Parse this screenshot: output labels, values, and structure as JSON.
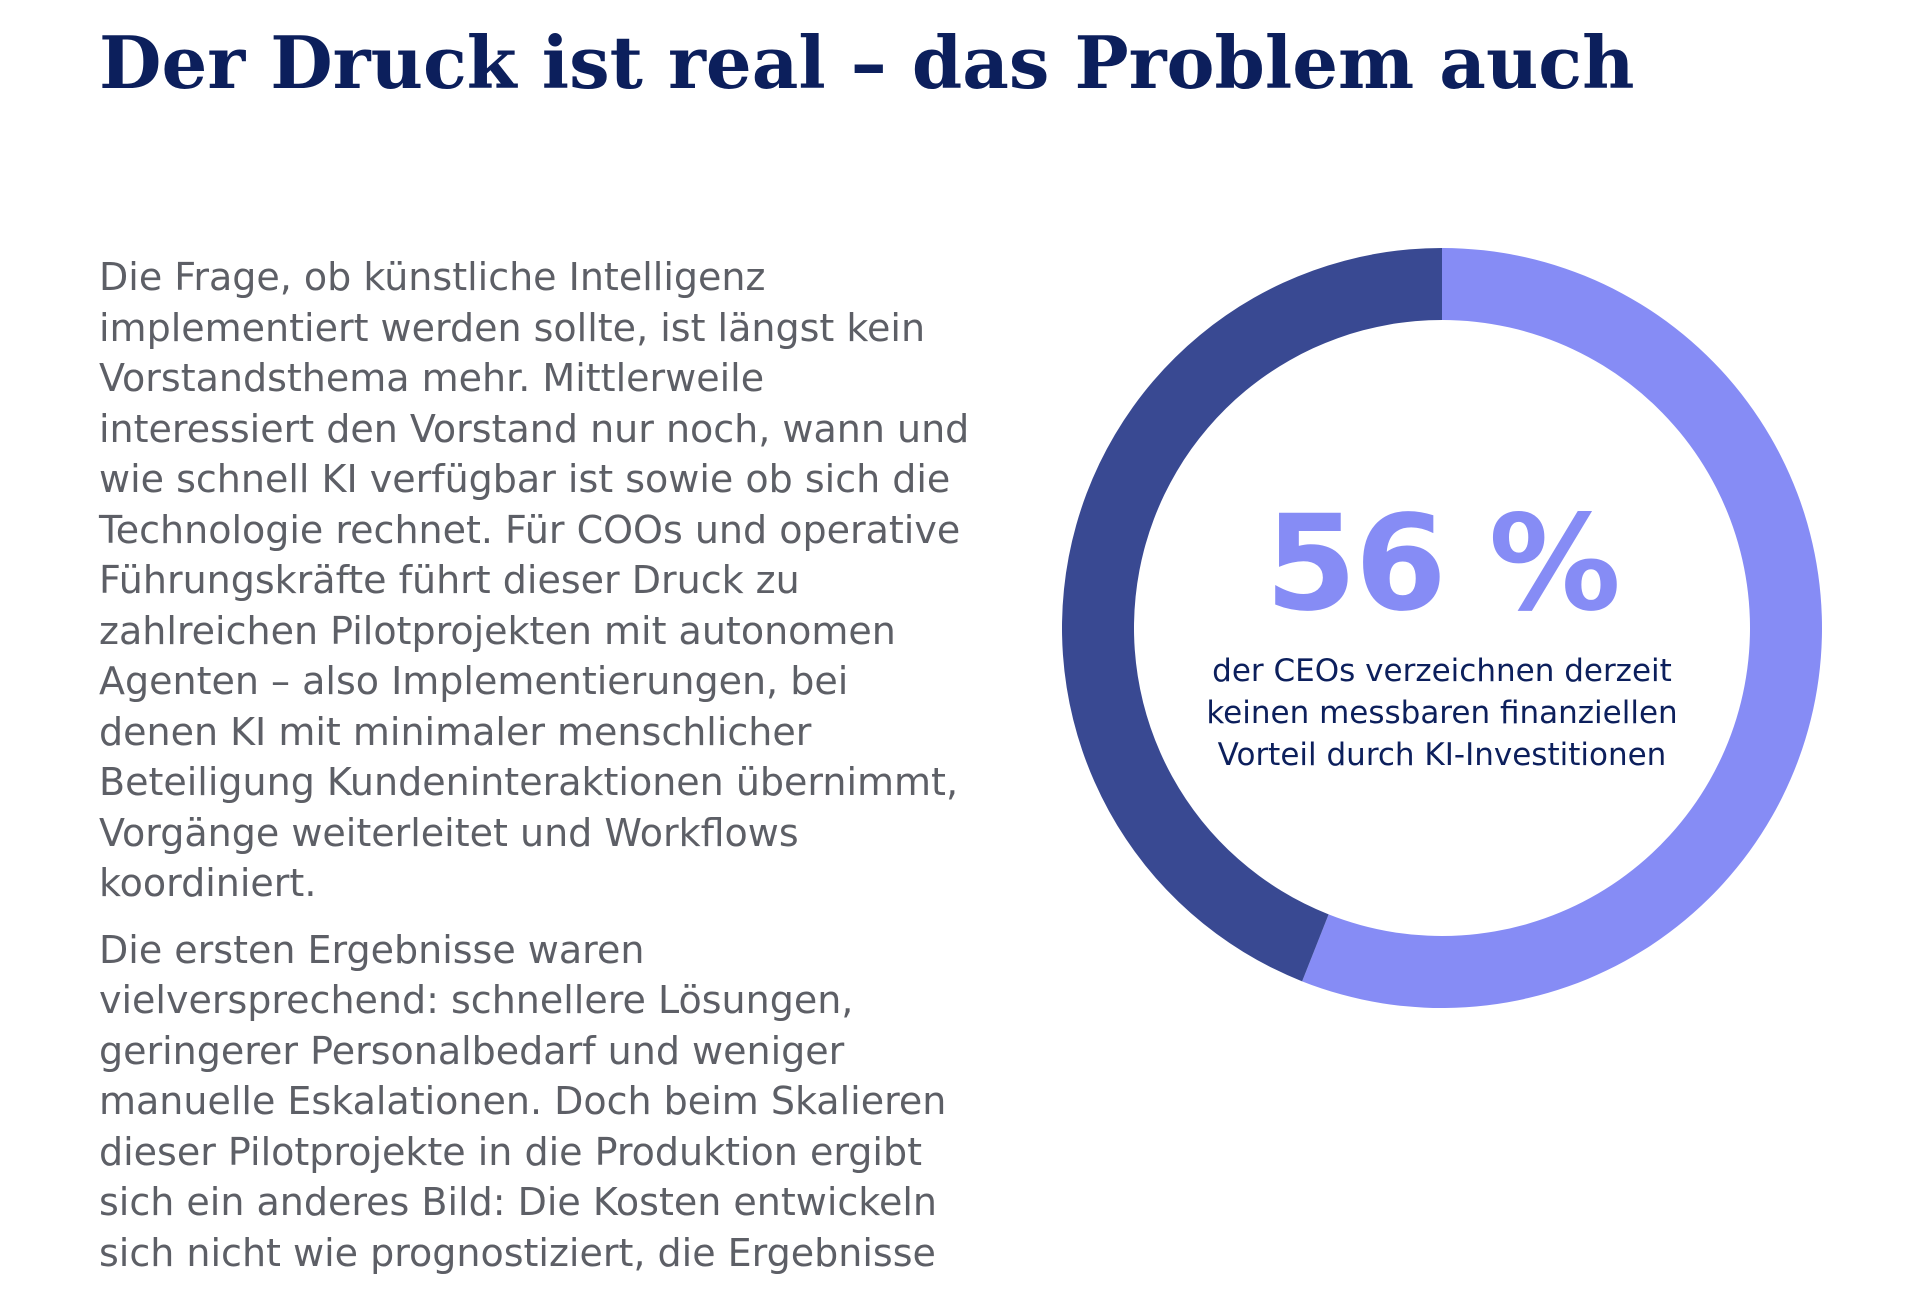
{
  "headline": "Der Druck ist real – das Problem auch",
  "body": {
    "paragraph_1": "Die Frage, ob künstliche Intelligenz implementiert werden sollte, ist längst kein Vorstandsthema mehr. Mittlerweile interessiert den Vorstand nur noch, wann und wie schnell KI verfügbar ist sowie ob sich die Technologie rechnet. Für COOs und operative Führungskräfte führt dieser Druck zu zahlreichen Pilotprojekten mit autonomen Agenten – also Implementierungen, bei denen KI mit minimaler menschlicher Beteiligung Kundeninteraktionen übernimmt, Vorgänge weiterleitet und Workflows koordiniert.",
    "paragraph_2": "Die ersten Ergebnisse waren vielversprechend: schnellere Lösungen, geringerer Personalbedarf und weniger manuelle Eskalationen. Doch beim Skalieren dieser Pilotprojekte in die Produktion ergibt sich ein anderes Bild: Die Kosten entwickeln sich nicht wie prognostiziert, die Ergebnisse"
  },
  "chart_data": {
    "type": "pie",
    "donut": true,
    "start_angle_deg": 0,
    "direction": "clockwise",
    "center_value": "56 %",
    "center_caption": "der CEOs verzeichnen derzeit keinen messbaren finanziellen Vorteil durch KI-Investitionen",
    "slices": [
      {
        "value": 56,
        "color": "#868cf5"
      },
      {
        "value": 44,
        "color": "#394992"
      }
    ]
  }
}
